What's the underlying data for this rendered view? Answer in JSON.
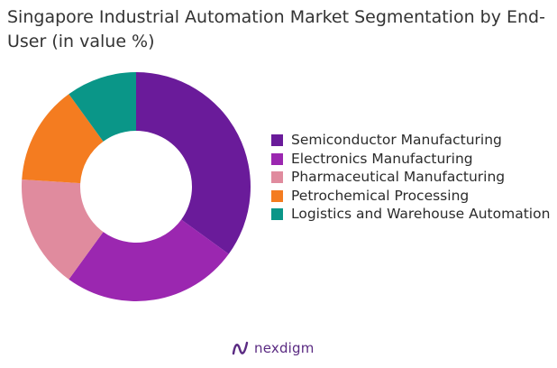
{
  "chart_data": {
    "type": "pie",
    "title": "Singapore Industrial Automation Market Segmentation by End-User (in value %)",
    "categories": [
      "Semiconductor Manufacturing",
      "Electronics Manufacturing",
      "Pharmaceutical Manufacturing",
      "Petrochemical Processing",
      "Logistics and Warehouse Automation"
    ],
    "values": [
      35,
      25,
      16,
      14,
      10
    ],
    "colors": [
      "#6a1b9a",
      "#9b27b0",
      "#e08b9e",
      "#f47c20",
      "#0a9688"
    ],
    "donut": true,
    "legend_position": "right"
  },
  "footer": {
    "brand_name": "nexdigm",
    "brand_color": "#5a2a82",
    "brand_icon": "nexdigm-logo-icon"
  }
}
